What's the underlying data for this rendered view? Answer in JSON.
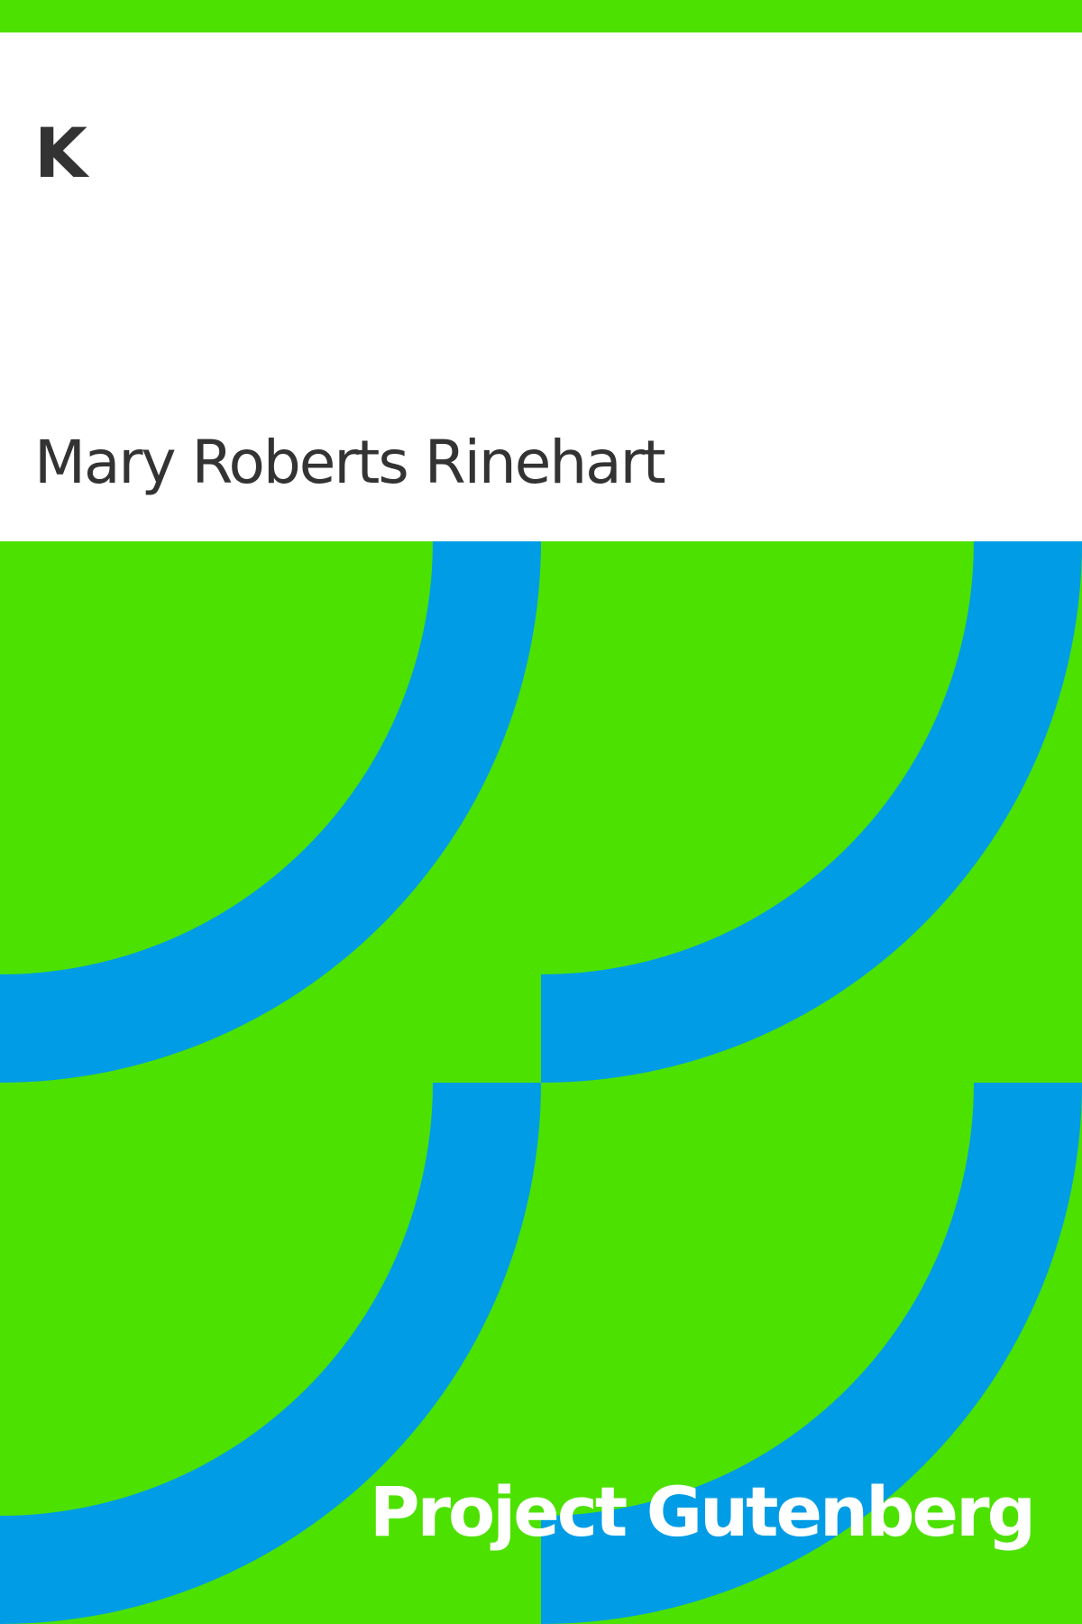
{
  "cover": {
    "title": "K",
    "author": "Mary Roberts Rinehart",
    "publisher": "Project Gutenberg"
  },
  "colors": {
    "background": "#ffffff",
    "accent_green": "#4de100",
    "accent_blue": "#009de6",
    "text_dark": "#333333",
    "text_light": "#ffffff"
  },
  "icons": {
    "pattern": "quarter-circle-arc-pattern"
  }
}
